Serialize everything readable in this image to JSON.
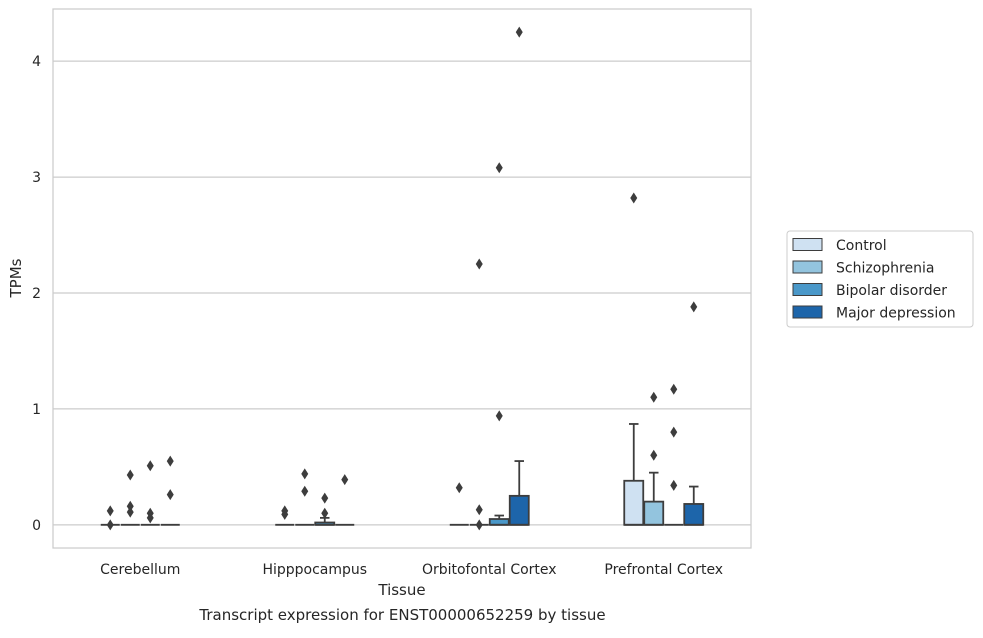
{
  "caption": "Transcript expression for ENST00000652259 by tissue",
  "chart_data": {
    "type": "box",
    "xlabel": "Tissue",
    "ylabel": "TPMs",
    "ylim": [
      -0.2,
      4.45
    ],
    "yticks": [
      0,
      1,
      2,
      3,
      4
    ],
    "grid": "horizontal",
    "legend_position": "right",
    "categories": [
      "Cerebellum",
      "Hipppocampus",
      "Orbitofontal Cortex",
      "Prefrontal Cortex"
    ],
    "series": [
      {
        "name": "Control",
        "color": "#cfe1f2",
        "boxes": [
          {
            "q1": 0,
            "median": 0,
            "q3": 0,
            "whisker_low": 0,
            "whisker_high": 0,
            "outliers": [
              0.0,
              0.12
            ]
          },
          {
            "q1": 0,
            "median": 0,
            "q3": 0,
            "whisker_low": 0,
            "whisker_high": 0,
            "outliers": [
              0.09,
              0.12
            ]
          },
          {
            "q1": 0,
            "median": 0,
            "q3": 0,
            "whisker_low": 0,
            "whisker_high": 0,
            "outliers": [
              0.32
            ]
          },
          {
            "q1": 0,
            "median": 0,
            "q3": 0.38,
            "whisker_low": 0,
            "whisker_high": 0.87,
            "outliers": [
              2.82
            ]
          }
        ]
      },
      {
        "name": "Schizophrenia",
        "color": "#93c4de",
        "boxes": [
          {
            "q1": 0,
            "median": 0,
            "q3": 0,
            "whisker_low": 0,
            "whisker_high": 0,
            "outliers": [
              0.11,
              0.16,
              0.43
            ]
          },
          {
            "q1": 0,
            "median": 0,
            "q3": 0,
            "whisker_low": 0,
            "whisker_high": 0,
            "outliers": [
              0.29,
              0.44
            ]
          },
          {
            "q1": 0,
            "median": 0,
            "q3": 0,
            "whisker_low": 0,
            "whisker_high": 0,
            "outliers": [
              0.0,
              0.13,
              2.25
            ]
          },
          {
            "q1": 0,
            "median": 0,
            "q3": 0.2,
            "whisker_low": 0,
            "whisker_high": 0.45,
            "outliers": [
              0.6,
              1.1
            ]
          }
        ]
      },
      {
        "name": "Bipolar disorder",
        "color": "#4a98c9",
        "boxes": [
          {
            "q1": 0,
            "median": 0,
            "q3": 0,
            "whisker_low": 0,
            "whisker_high": 0,
            "outliers": [
              0.06,
              0.1,
              0.51
            ]
          },
          {
            "q1": 0,
            "median": 0,
            "q3": 0.02,
            "whisker_low": 0,
            "whisker_high": 0.06,
            "outliers": [
              0.1,
              0.23
            ]
          },
          {
            "q1": 0,
            "median": 0,
            "q3": 0.05,
            "whisker_low": 0,
            "whisker_high": 0.08,
            "outliers": [
              0.94,
              3.08
            ]
          },
          {
            "q1": 0,
            "median": 0,
            "q3": 0,
            "whisker_low": 0,
            "whisker_high": 0,
            "outliers": [
              0.34,
              0.8,
              1.17
            ]
          }
        ]
      },
      {
        "name": "Major depression",
        "color": "#1d65aa",
        "boxes": [
          {
            "q1": 0,
            "median": 0,
            "q3": 0,
            "whisker_low": 0,
            "whisker_high": 0,
            "outliers": [
              0.26,
              0.55
            ]
          },
          {
            "q1": 0,
            "median": 0,
            "q3": 0,
            "whisker_low": 0,
            "whisker_high": 0,
            "outliers": [
              0.39
            ]
          },
          {
            "q1": 0,
            "median": 0,
            "q3": 0.25,
            "whisker_low": 0,
            "whisker_high": 0.55,
            "outliers": [
              4.25
            ]
          },
          {
            "q1": 0,
            "median": 0,
            "q3": 0.18,
            "whisker_low": 0,
            "whisker_high": 0.33,
            "outliers": [
              1.88
            ]
          }
        ]
      }
    ]
  }
}
